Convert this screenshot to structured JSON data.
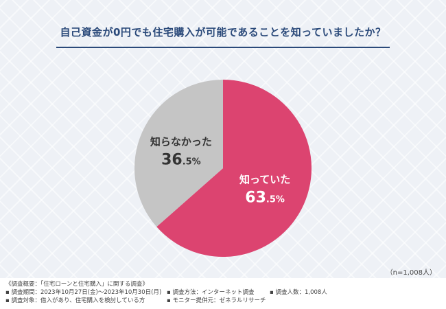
{
  "title": "自己資金が0円でも住宅購入が可能であることを知っていましたか？",
  "sample_note": "（n=1,008人）",
  "chart_data": {
    "type": "pie",
    "title": "自己資金が0円でも住宅購入が可能であることを知っていましたか？",
    "slices": [
      {
        "label": "知っていた",
        "value": 63.5,
        "value_text": "63",
        "decimal_text": ".5%",
        "color": "#dc4470",
        "text_color": "#ffffff"
      },
      {
        "label": "知らなかった",
        "value": 36.5,
        "value_text": "36",
        "decimal_text": ".5%",
        "color": "#c5c5c5",
        "text_color": "#333333"
      }
    ],
    "start_angle": "top (12 o'clock)",
    "direction": "clockwise"
  },
  "footer": {
    "heading": "《調査概要：「住宅ローンと住宅購入」に関する調査》",
    "period": "▪ 調査期間：2023年10月27日(金)～2023年10月30日(月)",
    "method": "▪ 調査方法：インターネット調査",
    "count": "▪ 調査人数：1,008人",
    "target": "▪ 調査対象：借入があり、住宅購入を検討している方",
    "provider": "▪ モニター提供元：ゼネラルリサーチ"
  }
}
